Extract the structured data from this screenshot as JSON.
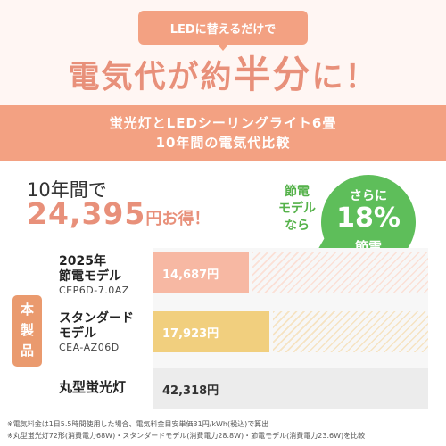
{
  "header": {
    "pill_text": "LEDに替えるだけで",
    "headline_a": "電気代が約",
    "headline_b": "半分",
    "headline_c": "に！"
  },
  "title_band": {
    "line1": "蛍光灯とLEDシーリングライト6畳",
    "line2": "10年間の電気代比較"
  },
  "savings": {
    "prefix": "10年間で",
    "amount": "24,395",
    "unit": "円お得！"
  },
  "energy_note": {
    "l1": "節電",
    "l2": "モデル",
    "l3": "なら"
  },
  "badge": {
    "l1": "さらに",
    "l2": "18%",
    "l3": "節電"
  },
  "side_badge": {
    "l1": "本",
    "l2": "製",
    "l3": "品"
  },
  "products": [
    {
      "name_line1": "2025年",
      "name_line2": "節電モデル",
      "model": "CEP6D-7.0AZ",
      "cost_label": "14,687円",
      "cost": 14687
    },
    {
      "name_line1": "スタンダード",
      "name_line2": "モデル",
      "model": "CEA-AZ06D",
      "cost_label": "17,923円",
      "cost": 17923
    },
    {
      "name_line1": "丸型蛍光灯",
      "name_line2": "",
      "model": "",
      "cost_label": "42,318円",
      "cost": 42318
    }
  ],
  "colors": {
    "accent": "#f3a182",
    "headline": "#e8907a",
    "green": "#5ebe5a",
    "bar_energy_saving": "#f7b8a3",
    "bar_standard": "#f1cf7e",
    "bar_fluorescent": "#ececec"
  },
  "footnotes": {
    "line1": "※電気料金は1日5.5時間使用した場合、電気料金目安単価31円/kWh(税込)で算出",
    "line2": "※丸型蛍光灯72形(消費電力68W)・スタンダードモデル(消費電力28.8W)・節電モデル(消費電力23.6W)を比較"
  }
}
